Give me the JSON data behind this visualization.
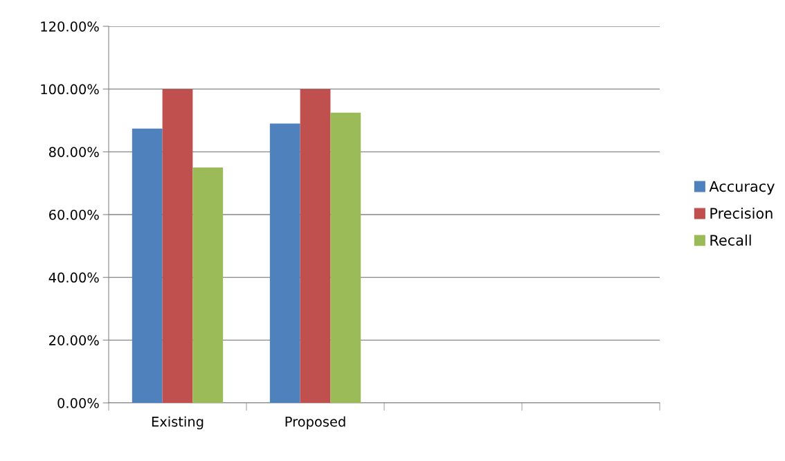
{
  "chart_data": {
    "type": "bar",
    "categories": [
      "Existing",
      "Proposed",
      null,
      null
    ],
    "series": [
      {
        "name": "Accuracy",
        "color": "#4f81bd",
        "values": [
          87.4,
          89.0,
          null,
          null
        ]
      },
      {
        "name": "Precision",
        "color": "#c0504d",
        "values": [
          100,
          100,
          null,
          null
        ]
      },
      {
        "name": "Recall",
        "color": "#9bbb59",
        "values": [
          75.0,
          92.5,
          null,
          null
        ]
      }
    ],
    "ylim": [
      0,
      120
    ],
    "yticks": [
      {
        "value": 0,
        "label": "0.00%"
      },
      {
        "value": 20,
        "label": "20.00%"
      },
      {
        "value": 40,
        "label": "40.00%"
      },
      {
        "value": 60,
        "label": "60.00%"
      },
      {
        "value": 80,
        "label": "80.00%"
      },
      {
        "value": 100,
        "label": "100.00%"
      },
      {
        "value": 120,
        "label": "120.00%"
      }
    ],
    "grid": "y",
    "legend": "right"
  }
}
